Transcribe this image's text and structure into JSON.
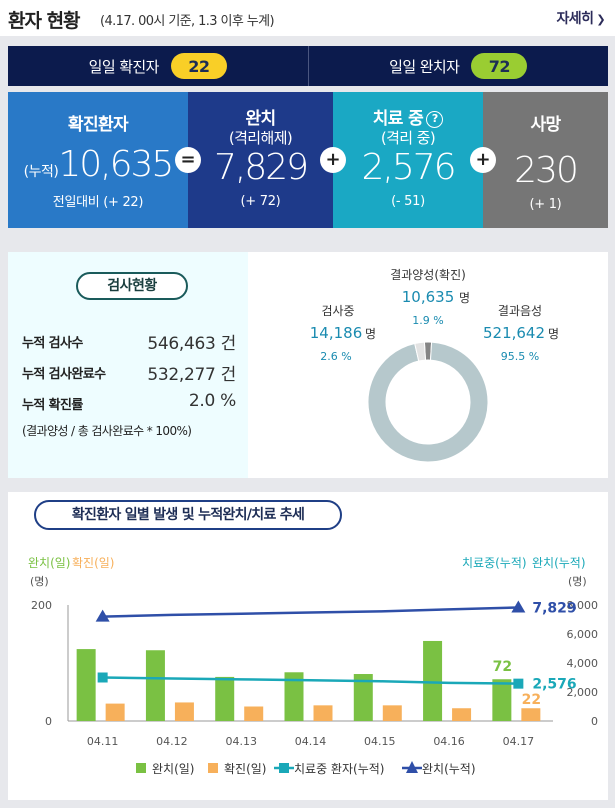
{
  "header": {
    "title": "환자 현황",
    "subtitle": "(4.17. 00시 기준, 1.3 이후 누계)",
    "more_label": "자세히"
  },
  "daily": {
    "confirmed_label": "일일 확진자",
    "confirmed_value": "22",
    "recovered_label": "일일 완치자",
    "recovered_value": "72"
  },
  "summary": {
    "confirmed": {
      "label": "확진환자",
      "prefix": "(누적)",
      "value": "10,635",
      "delta": "전일대비 (+ 22)"
    },
    "recovered": {
      "label": "완치",
      "label2": "(격리해제)",
      "value": "7,829",
      "delta": "(+ 72)"
    },
    "treating": {
      "label": "치료 중",
      "label2": "(격리 중)",
      "value": "2,576",
      "delta": "(- 51)"
    },
    "deaths": {
      "label": "사망",
      "value": "230",
      "delta": "(+ 1)"
    },
    "op_equals": "=",
    "op_plus": "+",
    "help_glyph": "?"
  },
  "tests": {
    "badge": "검사현황",
    "rows": [
      {
        "label": "누적 검사수",
        "value": "546,463 건"
      },
      {
        "label": "누적 검사완료수",
        "value": "532,277 건"
      },
      {
        "label": "누적 확진률",
        "value": "2.0 %"
      }
    ],
    "note": "(결과양성 / 총 검사완료수 * 100%)"
  },
  "donut": {
    "segments": [
      {
        "label": "결과음성",
        "value": "521,642",
        "unit": "명",
        "pct": "95.5 %",
        "share": 95.5,
        "color": "#b6c8cc"
      },
      {
        "label": "결과양성(확진)",
        "value": "10,635",
        "unit": "명",
        "pct": "1.9 %",
        "share": 1.9,
        "color": "#858585"
      },
      {
        "label": "검사중",
        "value": "14,186",
        "unit": "명",
        "pct": "2.6 %",
        "share": 2.6,
        "color": "#e3e3e3"
      }
    ]
  },
  "chart_title": "확진환자 일별 발생 및 누적완치/치료 추세",
  "chart_data": {
    "type": "bar",
    "categories": [
      "04.11",
      "04.12",
      "04.13",
      "04.14",
      "04.15",
      "04.16",
      "04.17"
    ],
    "left_axis": {
      "labels": [
        "완치(일)",
        "확진(일)"
      ],
      "unit": "(명)",
      "ylim": [
        0,
        200
      ],
      "ticks": [
        0,
        200
      ]
    },
    "right_axis": {
      "labels": [
        "치료중(누적)",
        "완치(누적)"
      ],
      "unit": "(명)",
      "ylim": [
        0,
        8000
      ],
      "ticks": [
        0,
        2000,
        4000,
        6000,
        8000
      ]
    },
    "series": [
      {
        "name": "완치(일)",
        "kind": "bar",
        "axis": "left",
        "color": "#7ac143",
        "values": [
          124,
          122,
          76,
          84,
          81,
          138,
          72
        ]
      },
      {
        "name": "확진(일)",
        "kind": "bar",
        "axis": "left",
        "color": "#f7b05b",
        "values": [
          30,
          32,
          25,
          27,
          27,
          22,
          22
        ]
      },
      {
        "name": "치료중 환자(누적)",
        "kind": "line",
        "axis": "right",
        "color": "#1aa8b8",
        "values": [
          3000,
          2930,
          2870,
          2810,
          2740,
          2630,
          2576
        ]
      },
      {
        "name": "완치(누적)",
        "kind": "line",
        "axis": "right",
        "color": "#2f4fa8",
        "values": [
          7200,
          7320,
          7400,
          7480,
          7560,
          7700,
          7829
        ]
      }
    ],
    "annotations": [
      {
        "text": "72",
        "color": "#7ac143"
      },
      {
        "text": "22",
        "color": "#f7b05b"
      },
      {
        "text": "2,576",
        "color": "#1aa8b8"
      },
      {
        "text": "7,829",
        "color": "#2f4fa8"
      }
    ]
  }
}
